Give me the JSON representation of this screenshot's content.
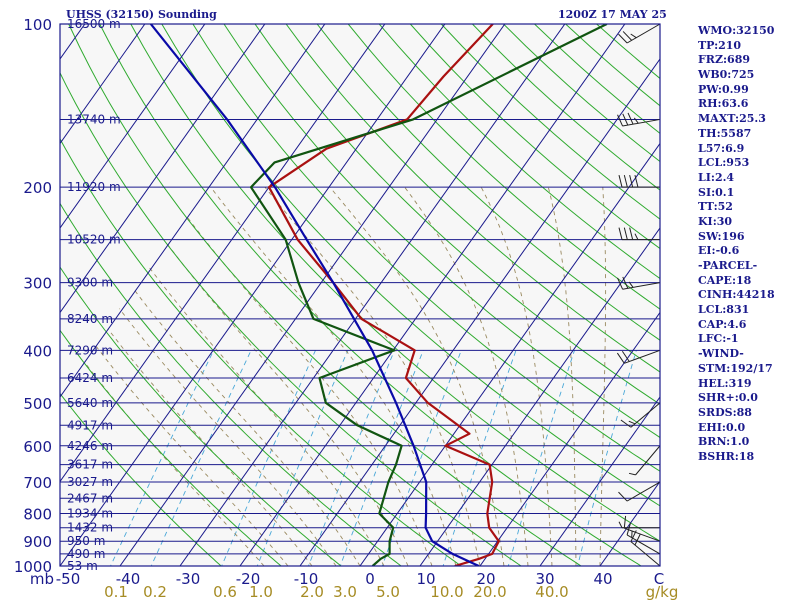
{
  "header": {
    "left": "UHSS (32150) Sounding",
    "right": "1200Z 17 MAY 25"
  },
  "indices": [
    "WMO:32150",
    "TP:210",
    "FRZ:689",
    "WB0:725",
    "PW:0.99",
    "RH:63.6",
    "MAXT:25.3",
    "TH:5587",
    "L57:6.9",
    "LCL:953",
    "LI:2.4",
    "SI:0.1",
    "TT:52",
    "KI:30",
    "SW:196",
    "EI:-0.6",
    "-PARCEL-",
    "CAPE:18",
    "CINH:44218",
    "LCL:831",
    "CAP:4.6",
    "LFC:-1",
    "-WIND-",
    "STM:192/17",
    "HEL:319",
    "SHR+:0.0",
    "SRDS:88",
    "EHI:0.0",
    "BRN:1.0",
    "BSHR:18"
  ],
  "chart_data": {
    "type": "line",
    "subtype": "skew-T log-P sounding",
    "y_axis": {
      "unit": "mb",
      "scale": "log",
      "ylim": [
        1000,
        100
      ],
      "ticks": [
        100,
        200,
        300,
        400,
        500,
        600,
        700,
        800,
        900,
        1000
      ]
    },
    "x_axis": {
      "unit": "C",
      "xlim": [
        -50,
        50
      ],
      "ticks": [
        -50,
        -40,
        -30,
        -20,
        -10,
        0,
        10,
        20,
        30,
        40
      ]
    },
    "x_tick_labels": [
      "mb",
      "-50",
      "-40",
      "-30",
      "-20",
      "-10",
      "0",
      "10",
      "20",
      "30",
      "40",
      "C"
    ],
    "mixing_ratio_labels": [
      "0.1",
      "0.2",
      "0.6",
      "1.0",
      "2.0",
      "3.0",
      "5.0",
      "10.0",
      "20.0",
      "40.0",
      "g/kg"
    ],
    "mixing_ratio_values": [
      0.1,
      0.2,
      0.6,
      1.0,
      2.0,
      3.0,
      5.0,
      10.0,
      20.0,
      40.0
    ],
    "height_levels": [
      {
        "p": 1000,
        "label": "53 m"
      },
      {
        "p": 950,
        "label": "490 m"
      },
      {
        "p": 900,
        "label": "950 m"
      },
      {
        "p": 850,
        "label": "1432 m"
      },
      {
        "p": 800,
        "label": "1934 m"
      },
      {
        "p": 750,
        "label": "2467 m"
      },
      {
        "p": 700,
        "label": "3027 m"
      },
      {
        "p": 650,
        "label": "3617 m"
      },
      {
        "p": 600,
        "label": "4246 m"
      },
      {
        "p": 550,
        "label": "4917 m"
      },
      {
        "p": 500,
        "label": "5640 m"
      },
      {
        "p": 450,
        "label": "6424 m"
      },
      {
        "p": 400,
        "label": "7290 m"
      },
      {
        "p": 350,
        "label": "8240 m"
      },
      {
        "p": 300,
        "label": "9300 m"
      },
      {
        "p": 250,
        "label": "10520 m"
      },
      {
        "p": 200,
        "label": "11920 m"
      },
      {
        "p": 150,
        "label": "13740 m"
      },
      {
        "p": 100,
        "label": "16500 m"
      }
    ],
    "series": [
      {
        "color": "#aa1111",
        "points": [
          [
            1000,
            15.8
          ],
          [
            970,
            19
          ],
          [
            950,
            20.6
          ],
          [
            900,
            20.2
          ],
          [
            850,
            17
          ],
          [
            800,
            15
          ],
          [
            700,
            12.1
          ],
          [
            650,
            9.6
          ],
          [
            600,
            0
          ],
          [
            570,
            2.6
          ],
          [
            500,
            -8
          ],
          [
            450,
            -14.6
          ],
          [
            400,
            -16.4
          ],
          [
            350,
            -29
          ],
          [
            300,
            -38
          ],
          [
            250,
            -49
          ],
          [
            200,
            -60
          ],
          [
            170,
            -55
          ],
          [
            150,
            -45
          ],
          [
            125,
            -44
          ],
          [
            100,
            -42
          ]
        ]
      },
      {
        "color": "#115511",
        "points": [
          [
            1000,
            2.1
          ],
          [
            970,
            2.6
          ],
          [
            950,
            3.5
          ],
          [
            900,
            2
          ],
          [
            850,
            1
          ],
          [
            800,
            -3
          ],
          [
            700,
            -5.2
          ],
          [
            650,
            -6
          ],
          [
            600,
            -7.3
          ],
          [
            550,
            -17.1
          ],
          [
            500,
            -25
          ],
          [
            450,
            -29
          ],
          [
            400,
            -19.8
          ],
          [
            350,
            -37
          ],
          [
            300,
            -43.8
          ],
          [
            250,
            -51
          ],
          [
            200,
            -63
          ],
          [
            180,
            -62
          ],
          [
            150,
            -44
          ],
          [
            100,
            -23
          ]
        ]
      },
      {
        "color": "#0a0aa8",
        "points": [
          [
            1000,
            19.8
          ],
          [
            950,
            14
          ],
          [
            900,
            9.1
          ],
          [
            850,
            6.4
          ],
          [
            800,
            4.8
          ],
          [
            700,
            1.1
          ],
          [
            600,
            -5.3
          ],
          [
            500,
            -13.3
          ],
          [
            400,
            -23.5
          ],
          [
            300,
            -38
          ],
          [
            250,
            -47.5
          ],
          [
            200,
            -59
          ],
          [
            150,
            -75
          ],
          [
            100,
            -99
          ]
        ]
      }
    ],
    "wind_barbs": [
      {
        "p": 1000,
        "dir": 310,
        "spd": 20
      },
      {
        "p": 950,
        "dir": 300,
        "spd": 15
      },
      {
        "p": 900,
        "dir": 290,
        "spd": 10
      },
      {
        "p": 850,
        "dir": 270,
        "spd": 5
      },
      {
        "p": 700,
        "dir": 240,
        "spd": 10
      },
      {
        "p": 600,
        "dir": 220,
        "spd": 5
      },
      {
        "p": 500,
        "dir": 230,
        "spd": 15
      },
      {
        "p": 400,
        "dir": 250,
        "spd": 20
      },
      {
        "p": 300,
        "dir": 260,
        "spd": 25
      },
      {
        "p": 250,
        "dir": 270,
        "spd": 35
      },
      {
        "p": 200,
        "dir": 270,
        "spd": 40
      },
      {
        "p": 150,
        "dir": 260,
        "spd": 35
      },
      {
        "p": 100,
        "dir": 240,
        "spd": 25
      }
    ]
  }
}
